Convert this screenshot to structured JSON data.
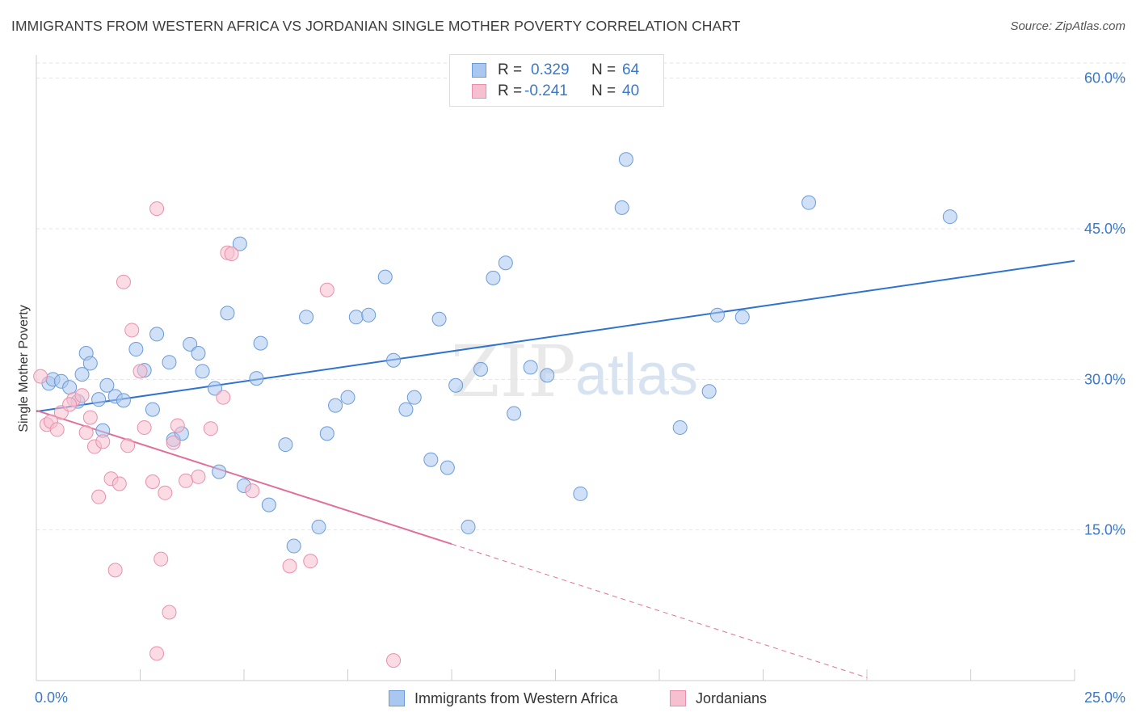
{
  "title": "IMMIGRANTS FROM WESTERN AFRICA VS JORDANIAN SINGLE MOTHER POVERTY CORRELATION CHART",
  "source": "Source: ZipAtlas.com",
  "watermark": {
    "zip": "ZIP",
    "atlas": "atlas"
  },
  "stats": [
    {
      "r_label": "R =",
      "r_value": "0.329",
      "n_label": "N =",
      "n_value": "64",
      "color": "#a9c7ef",
      "border": "#6a9bd8"
    },
    {
      "r_label": "R =",
      "r_value": "-0.241",
      "n_label": "N =",
      "n_value": "40",
      "color": "#f7c0d0",
      "border": "#e890ab"
    }
  ],
  "legend": [
    {
      "label": "Immigrants from Western Africa",
      "color": "#a9c7ef",
      "border": "#6a9bd8"
    },
    {
      "label": "Jordanians",
      "color": "#f7c0d0",
      "border": "#e890ab"
    }
  ],
  "chart_data": {
    "type": "scatter",
    "title": "IMMIGRANTS FROM WESTERN AFRICA VS JORDANIAN SINGLE MOTHER POVERTY CORRELATION CHART",
    "xlabel": "",
    "ylabel": "Single Mother Poverty",
    "xlim": [
      0,
      25
    ],
    "ylim": [
      0,
      61.5
    ],
    "x_tick_labels": [
      "0.0%",
      "25.0%"
    ],
    "y_ticks": [
      15,
      30,
      45,
      60
    ],
    "y_tick_labels": [
      "15.0%",
      "30.0%",
      "45.0%",
      "60.0%"
    ],
    "grid": true,
    "series": [
      {
        "name": "Immigrants from Western Africa",
        "color": "#a9c7ef",
        "edge": "#6a9bd8",
        "line_color": "#2f72cf",
        "trend": {
          "x0": 0,
          "y0": 26.8,
          "x1": 25,
          "y1": 41.8
        },
        "points": [
          [
            0.3,
            29.6
          ],
          [
            0.4,
            30.0
          ],
          [
            0.6,
            29.8
          ],
          [
            0.8,
            29.2
          ],
          [
            1.0,
            27.8
          ],
          [
            1.2,
            32.6
          ],
          [
            1.3,
            31.6
          ],
          [
            1.1,
            30.5
          ],
          [
            1.5,
            28.0
          ],
          [
            1.7,
            29.4
          ],
          [
            1.9,
            28.3
          ],
          [
            2.1,
            27.9
          ],
          [
            2.4,
            33.0
          ],
          [
            2.6,
            30.9
          ],
          [
            2.8,
            27.0
          ],
          [
            2.9,
            34.5
          ],
          [
            3.2,
            31.7
          ],
          [
            3.3,
            24.0
          ],
          [
            3.5,
            24.6
          ],
          [
            3.7,
            33.5
          ],
          [
            3.9,
            32.6
          ],
          [
            4.0,
            30.8
          ],
          [
            4.3,
            29.1
          ],
          [
            4.4,
            20.8
          ],
          [
            4.6,
            36.6
          ],
          [
            4.9,
            43.5
          ],
          [
            5.0,
            19.4
          ],
          [
            5.3,
            30.1
          ],
          [
            5.4,
            33.6
          ],
          [
            5.6,
            17.5
          ],
          [
            6.0,
            23.5
          ],
          [
            6.2,
            13.4
          ],
          [
            6.5,
            36.2
          ],
          [
            6.8,
            15.3
          ],
          [
            7.0,
            24.6
          ],
          [
            7.2,
            27.4
          ],
          [
            7.5,
            28.2
          ],
          [
            7.7,
            36.2
          ],
          [
            8.0,
            36.4
          ],
          [
            8.4,
            40.2
          ],
          [
            8.6,
            31.9
          ],
          [
            8.9,
            27.0
          ],
          [
            9.1,
            28.2
          ],
          [
            9.5,
            22.0
          ],
          [
            9.7,
            36.0
          ],
          [
            9.9,
            21.2
          ],
          [
            10.1,
            29.4
          ],
          [
            10.4,
            15.3
          ],
          [
            10.7,
            31.0
          ],
          [
            11.0,
            40.1
          ],
          [
            11.3,
            41.6
          ],
          [
            11.5,
            26.6
          ],
          [
            11.9,
            31.2
          ],
          [
            12.3,
            30.4
          ],
          [
            13.1,
            18.6
          ],
          [
            14.1,
            47.1
          ],
          [
            14.2,
            51.9
          ],
          [
            15.5,
            25.2
          ],
          [
            16.2,
            28.8
          ],
          [
            16.4,
            36.4
          ],
          [
            17.0,
            36.2
          ],
          [
            18.6,
            47.6
          ],
          [
            22.0,
            46.2
          ],
          [
            1.6,
            24.9
          ]
        ]
      },
      {
        "name": "Jordanians",
        "color": "#f7c0d0",
        "edge": "#e890ab",
        "line_color": "#e0709a",
        "trend": {
          "x0": 0,
          "y0": 26.9,
          "x1": 10.0,
          "y1": 13.6
        },
        "trend_dashed": {
          "x0": 10.0,
          "y0": 13.6,
          "x1": 20.0,
          "y1": 0.3
        },
        "points": [
          [
            0.1,
            30.3
          ],
          [
            0.25,
            25.5
          ],
          [
            0.35,
            25.8
          ],
          [
            0.5,
            25.0
          ],
          [
            0.6,
            26.7
          ],
          [
            0.9,
            28.0
          ],
          [
            1.1,
            28.4
          ],
          [
            1.2,
            24.7
          ],
          [
            1.4,
            23.3
          ],
          [
            1.5,
            18.3
          ],
          [
            1.6,
            23.8
          ],
          [
            1.8,
            20.1
          ],
          [
            1.9,
            11.0
          ],
          [
            2.0,
            19.6
          ],
          [
            2.1,
            39.7
          ],
          [
            2.2,
            23.4
          ],
          [
            2.3,
            34.9
          ],
          [
            2.5,
            30.8
          ],
          [
            2.6,
            25.2
          ],
          [
            2.8,
            19.8
          ],
          [
            2.9,
            47.0
          ],
          [
            3.0,
            12.1
          ],
          [
            3.1,
            18.7
          ],
          [
            3.2,
            6.8
          ],
          [
            3.3,
            23.7
          ],
          [
            3.4,
            25.4
          ],
          [
            3.6,
            19.9
          ],
          [
            3.9,
            20.3
          ],
          [
            4.2,
            25.1
          ],
          [
            4.5,
            28.2
          ],
          [
            4.6,
            42.6
          ],
          [
            4.7,
            42.5
          ],
          [
            5.2,
            18.9
          ],
          [
            6.1,
            11.4
          ],
          [
            6.6,
            11.9
          ],
          [
            7.0,
            38.9
          ],
          [
            2.9,
            2.7
          ],
          [
            8.6,
            2.0
          ],
          [
            0.8,
            27.5
          ],
          [
            1.3,
            26.2
          ]
        ]
      }
    ]
  }
}
